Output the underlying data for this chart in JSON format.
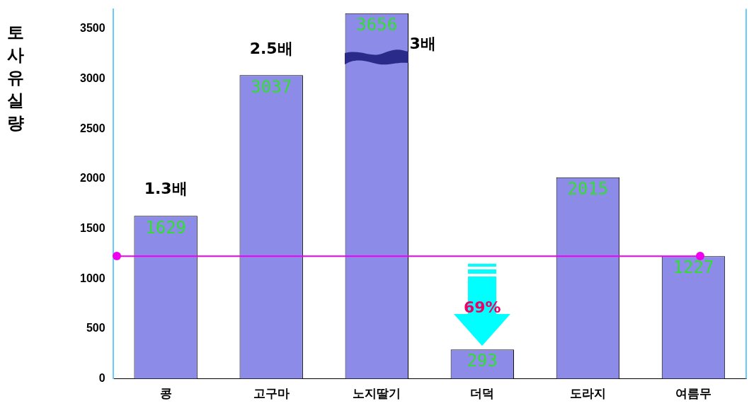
{
  "chart_data": {
    "type": "bar",
    "ylabel": "토사유실량",
    "categories": [
      "콩",
      "고구마",
      "노지딸기",
      "더덕",
      "도라지",
      "여름무"
    ],
    "values": [
      1629,
      3037,
      3656,
      293,
      2015,
      1227
    ],
    "color": "#8c8ce8",
    "data_labels": true,
    "ylim": [
      0,
      3700
    ],
    "yticks": [
      0,
      500,
      1000,
      1500,
      2000,
      2500,
      3000,
      3500
    ],
    "grid": false,
    "legend": false,
    "ref_lines": [
      {
        "axis": "y",
        "value": 1227,
        "color": "#ee00ee"
      }
    ],
    "annotations": [
      "1.3배",
      "2.5배",
      "3배",
      "69%"
    ]
  }
}
